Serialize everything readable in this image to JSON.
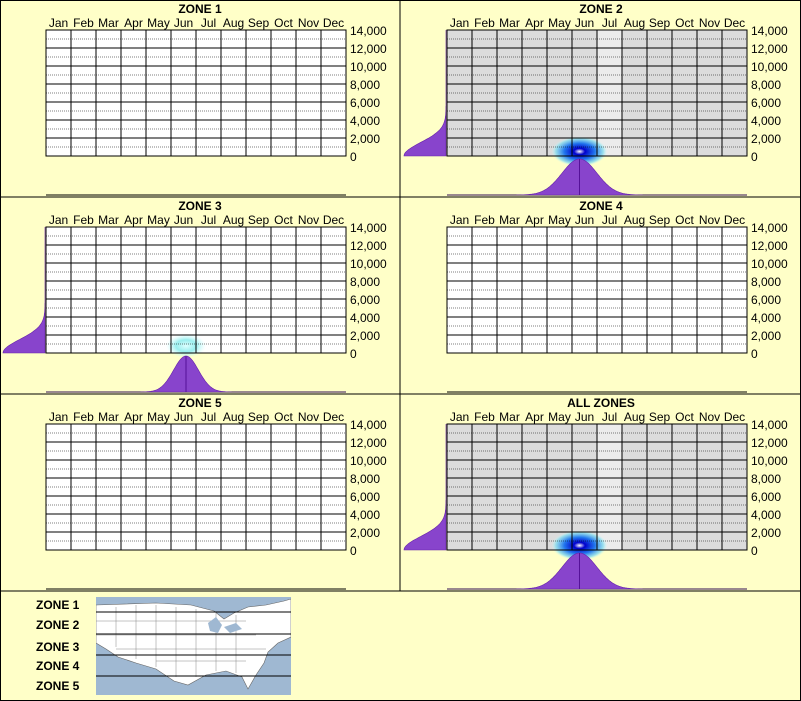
{
  "months": [
    "Jan",
    "Feb",
    "Mar",
    "Apr",
    "May",
    "Jun",
    "Jul",
    "Aug",
    "Sep",
    "Oct",
    "Nov",
    "Dec"
  ],
  "y_ticks": [
    "14,000",
    "12,000",
    "10,000",
    "8,000",
    "6,000",
    "4,000",
    "2,000",
    "0"
  ],
  "colors": {
    "background": "#ffffc8",
    "plot_bg": "#ffffff",
    "shaded_bg": "#dcdcdc",
    "density_purple": "#8844cc",
    "hot_blue": "#0000cc"
  },
  "chart_data": [
    {
      "type": "heatmap",
      "title": "ZONE 1",
      "ylim": [
        0,
        14000
      ],
      "shaded_months": [],
      "hotspot": null,
      "month_density": null,
      "elev_density": null
    },
    {
      "type": "heatmap",
      "title": "ZONE 2",
      "ylim": [
        0,
        14000
      ],
      "shaded_months": [
        0,
        1,
        2,
        3,
        4,
        5,
        6,
        7,
        8,
        9,
        10,
        11
      ],
      "hotspot": {
        "month": 4.8,
        "elevation": 500,
        "intensity": "high"
      },
      "month_density": {
        "peak": 4.8,
        "spread": 0.7
      },
      "elev_density": {
        "peak": 0,
        "spread": 1500
      }
    },
    {
      "type": "heatmap",
      "title": "ZONE 3",
      "ylim": [
        0,
        14000
      ],
      "shaded_months": [],
      "hotspot": {
        "month": 5.1,
        "elevation": 800,
        "intensity": "low"
      },
      "month_density": {
        "peak": 5.1,
        "spread": 0.5
      },
      "elev_density": {
        "peak": 0,
        "spread": 1500
      }
    },
    {
      "type": "heatmap",
      "title": "ZONE 4",
      "ylim": [
        0,
        14000
      ],
      "shaded_months": [],
      "hotspot": null,
      "month_density": null,
      "elev_density": null
    },
    {
      "type": "heatmap",
      "title": "ZONE 5",
      "ylim": [
        0,
        14000
      ],
      "shaded_months": [],
      "hotspot": null,
      "month_density": null,
      "elev_density": null
    },
    {
      "type": "heatmap",
      "title": "ALL ZONES",
      "ylim": [
        0,
        14000
      ],
      "shaded_months": [
        0,
        1,
        2,
        3,
        4,
        5,
        6,
        7,
        8,
        9,
        10,
        11
      ],
      "hotspot": {
        "month": 4.8,
        "elevation": 500,
        "intensity": "high"
      },
      "month_density": {
        "peak": 4.8,
        "spread": 0.7
      },
      "elev_density": {
        "peak": 0,
        "spread": 1500
      }
    }
  ],
  "legend": {
    "zones": [
      "ZONE 1",
      "ZONE 2",
      "ZONE 3",
      "ZONE 4",
      "ZONE 5"
    ]
  }
}
